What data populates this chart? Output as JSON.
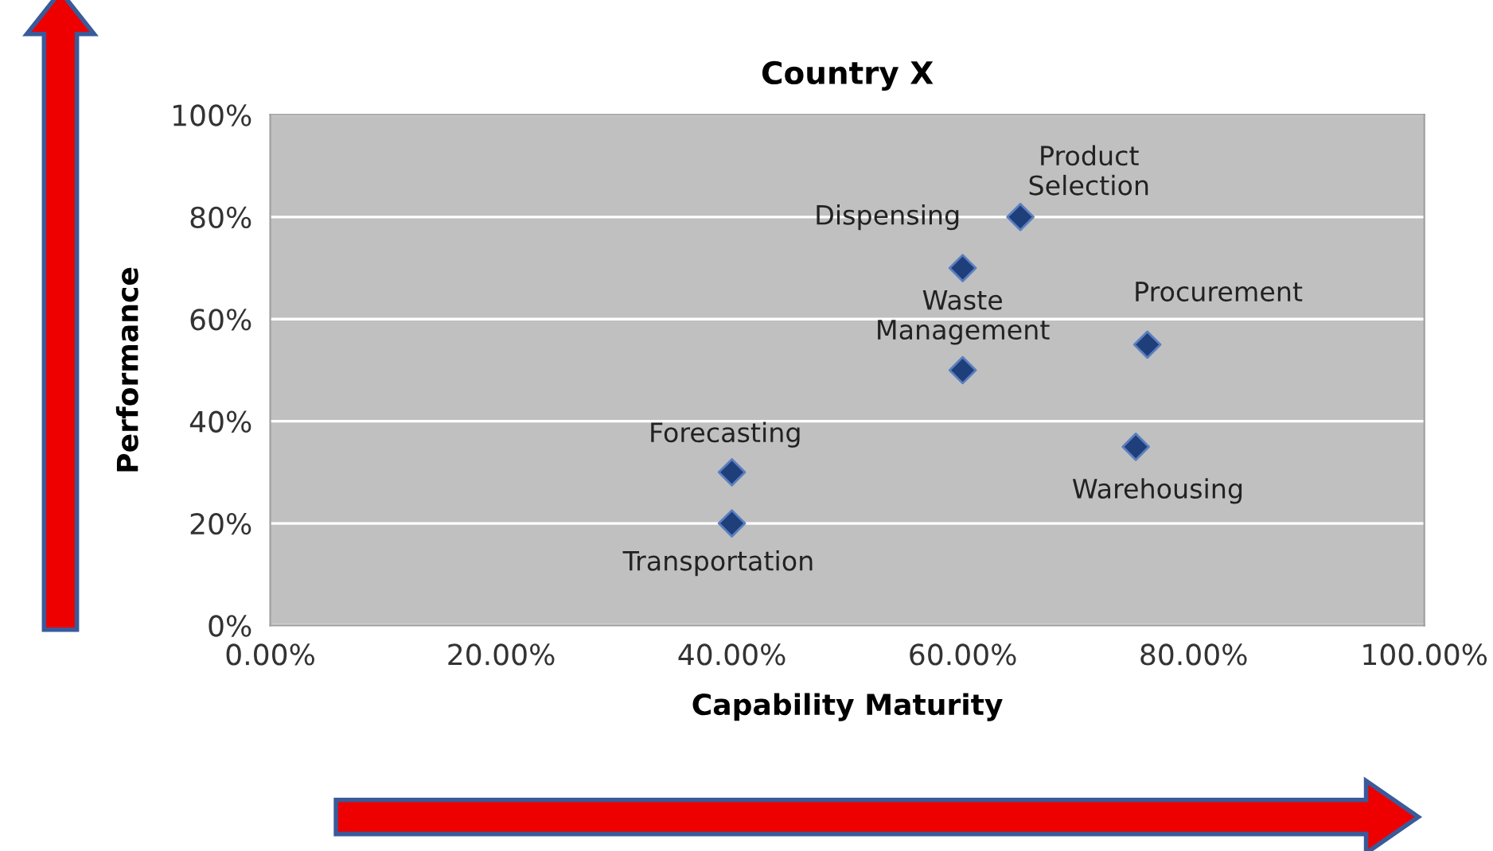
{
  "chart_data": {
    "type": "scatter",
    "title": "Country X",
    "xlabel": "Capability Maturity",
    "ylabel": "Performance",
    "x": [
      40,
      40,
      60,
      60,
      65,
      75,
      76
    ],
    "series": [
      {
        "color": "#1f3f7a",
        "values": [
          20,
          30,
          50,
          70,
          80,
          35,
          55
        ]
      }
    ],
    "marker": "diamond",
    "grid": "y",
    "legend": false,
    "xlim": [
      0,
      100
    ],
    "ylim": [
      0,
      100
    ],
    "xticks": [
      {
        "value": 0,
        "label": "0.00%"
      },
      {
        "value": 20,
        "label": "20.00%"
      },
      {
        "value": 40,
        "label": "40.00%"
      },
      {
        "value": 60,
        "label": "60.00%"
      },
      {
        "value": 80,
        "label": "80.00%"
      },
      {
        "value": 100,
        "label": "100.00%"
      }
    ],
    "yticks": [
      {
        "value": 0,
        "label": "0%"
      },
      {
        "value": 20,
        "label": "20%"
      },
      {
        "value": 40,
        "label": "40%"
      },
      {
        "value": 60,
        "label": "60%"
      },
      {
        "value": 80,
        "label": "80%"
      },
      {
        "value": 100,
        "label": "100%"
      }
    ],
    "annotations": [
      {
        "text": "Transportation",
        "x": 40,
        "y": 20
      },
      {
        "text": "Forecasting",
        "x": 40,
        "y": 30
      },
      {
        "text": "Waste\nManagement",
        "x": 60,
        "y": 50
      },
      {
        "text": "Dispensing",
        "x": 60,
        "y": 70
      },
      {
        "text": "Product\nSelection",
        "x": 65,
        "y": 80
      },
      {
        "text": "Warehousing",
        "x": 75,
        "y": 35
      },
      {
        "text": "Procurement",
        "x": 76,
        "y": 55
      }
    ]
  }
}
